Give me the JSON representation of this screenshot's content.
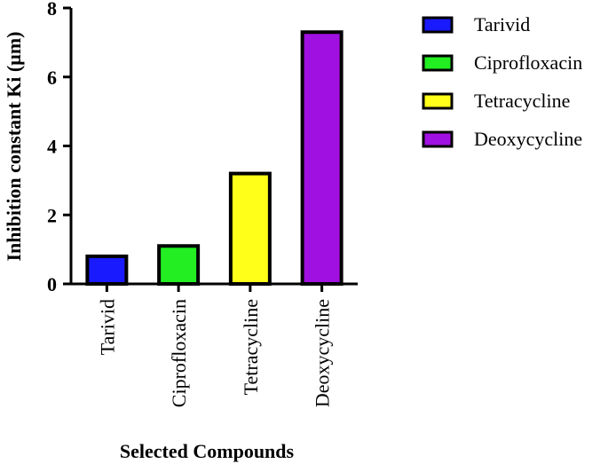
{
  "chart_data": {
    "type": "bar",
    "categories": [
      "Tarivid",
      "Ciprofloxacin",
      "Tetracycline",
      "Deoxycycline"
    ],
    "values": [
      0.8,
      1.1,
      3.2,
      7.3
    ],
    "colors": [
      "#1a1aff",
      "#22ee22",
      "#ffff1a",
      "#a010e0"
    ],
    "title": "",
    "xlabel": "Selected Compounds",
    "ylabel": "Inhibition constant  Ki (µm)",
    "ylim": [
      0,
      8
    ],
    "yticks": [
      0,
      2,
      4,
      6,
      8
    ],
    "grid": false,
    "legend": {
      "position": "top-right",
      "entries": [
        "Tarivid",
        "Ciprofloxacin",
        "Tetracycline",
        "Deoxycycline"
      ]
    }
  }
}
